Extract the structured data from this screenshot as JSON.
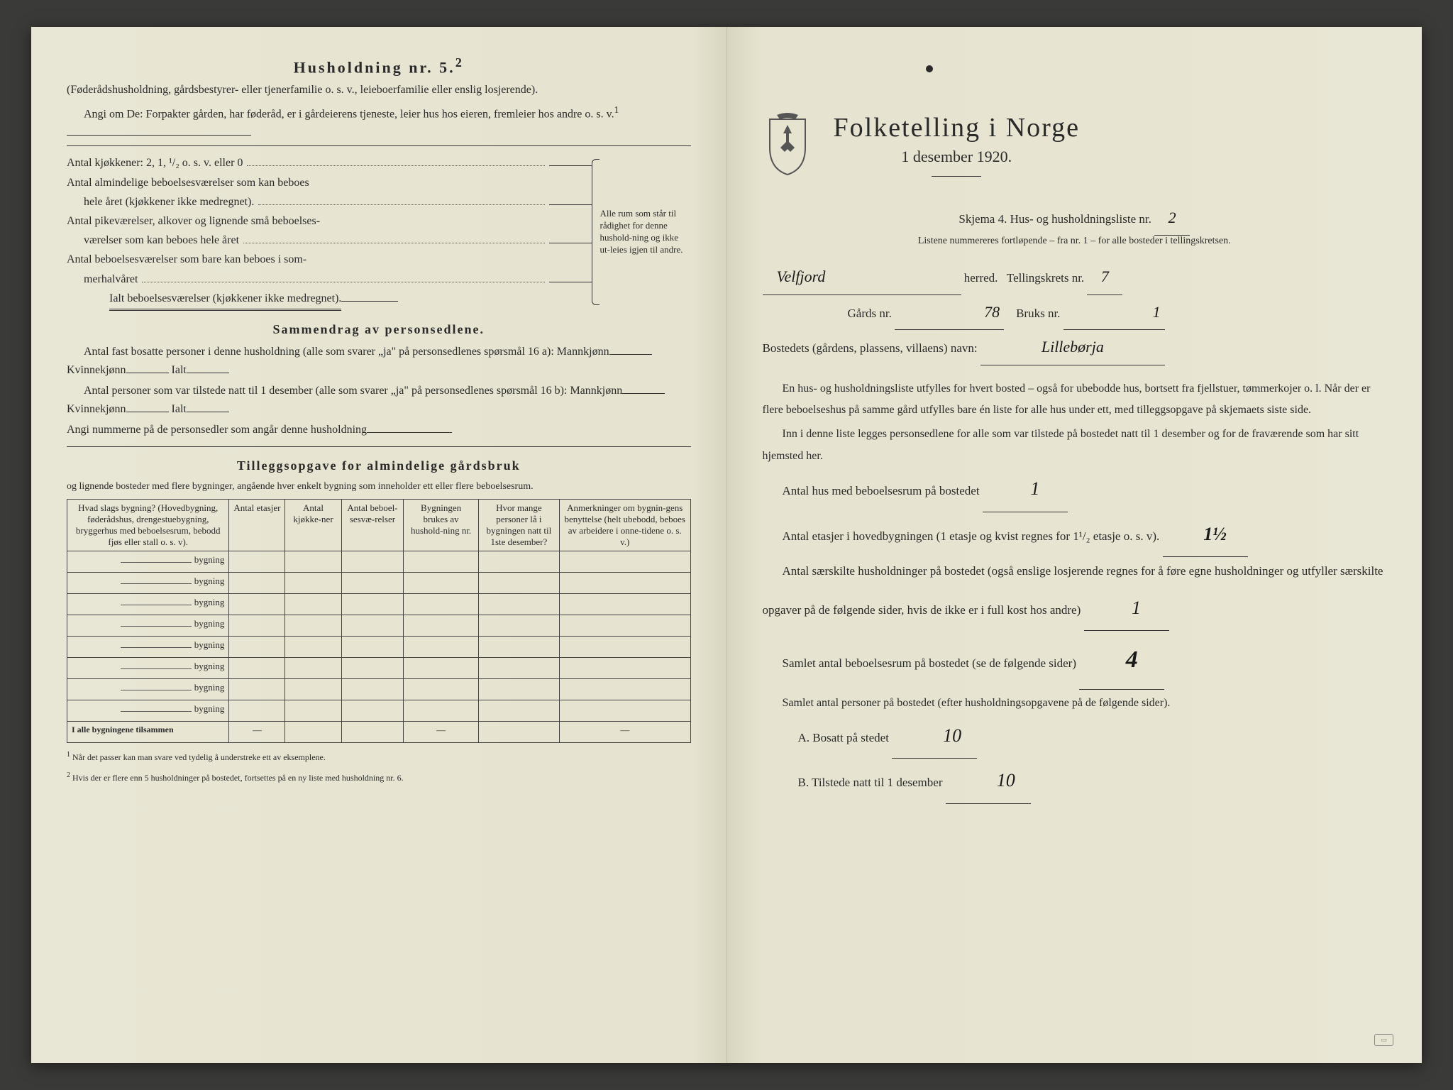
{
  "colors": {
    "paper": "#e8e6d4",
    "ink": "#2a2a2a",
    "background": "#3a3a38",
    "handwriting": "#1a1a1a"
  },
  "left": {
    "household_title": "Husholdning nr. 5.",
    "household_sup": "2",
    "household_intro": "(Føderådshusholdning, gårdsbestyrer- eller tjenerfamilie o. s. v., leieboerfamilie eller enslig losjerende).",
    "household_prompt": "Angi om De: Forpakter gården, har føderåd, er i gårdeierens tjeneste, leier hus hos eieren, fremleier hos andre o. s. v.",
    "household_sup2": "1",
    "kitchen_line": "Antal kjøkkener: 2, 1, ¹/₂ o. s. v. eller 0",
    "rooms_line1a": "Antal almindelige beboelsesværelser som kan beboes",
    "rooms_line1b": "hele året (kjøkkener ikke medregnet).",
    "rooms_line2a": "Antal pikeværelser, alkover og lignende små beboelses-",
    "rooms_line2b": "værelser som kan beboes hele året",
    "rooms_line3a": "Antal beboelsesværelser som bare kan beboes i som-",
    "rooms_line3b": "merhalvåret",
    "rooms_total": "Ialt beboelsesværelser  (kjøkkener ikke medregnet).",
    "brace_text": "Alle rum som står til rådighet for denne hushold-ning og ikke ut-leies igjen til andre.",
    "summary_title": "Sammendrag av personsedlene.",
    "summary_l1": "Antal fast bosatte personer i denne husholdning (alle som svarer „ja\" på personsedlenes spørsmål 16 a): Mannkjønn",
    "kvinnekjonn": "Kvinnekjønn",
    "ialt": "Ialt",
    "summary_l2": "Antal personer som var tilstede natt til 1 desember (alle som svarer „ja\" på personsedlenes spørsmål 16 b): Mannkjønn",
    "summary_l3": "Angi nummerne på de personsedler som angår denne husholdning",
    "tillegg_title": "Tilleggsopgave for almindelige gårdsbruk",
    "tillegg_sub": "og lignende bosteder med flere bygninger, angående hver enkelt bygning som inneholder ett eller flere beboelsesrum.",
    "table": {
      "headers": [
        "Hvad slags bygning?\n(Hovedbygning, føderådshus, drengestuebygning, bryggerhus med beboelsesrum, bebodd fjøs eller stall o. s. v).",
        "Antal etasjer",
        "Antal kjøkke-ner",
        "Antal beboel-sesvæ-relser",
        "Bygningen brukes av hushold-ning nr.",
        "Hvor mange personer lå i bygningen natt til 1ste desember?",
        "Anmerkninger om bygnin-gens benyttelse (helt ubebodd, beboes av arbeidere i onne-tidene o. s. v.)"
      ],
      "row_suffix": "bygning",
      "row_count": 8,
      "total_row": "I alle bygningene tilsammen"
    },
    "footnote1": "Når det passer kan man svare ved tydelig å understreke ett av eksemplene.",
    "footnote2": "Hvis der er flere enn 5 husholdninger på bostedet, fortsettes på en ny liste med husholdning nr. 6.",
    "footnote1_num": "1",
    "footnote2_num": "2"
  },
  "right": {
    "main_title": "Folketelling i Norge",
    "date": "1 desember 1920.",
    "skjema_line": "Skjema 4.  Hus- og husholdningsliste nr.",
    "skjema_value": "2",
    "listene": "Listene nummereres fortløpende – fra nr. 1 – for alle bosteder i tellingskretsen.",
    "herred_value": "Velfjord",
    "herred_label": "herred.",
    "tellingskrets_label": "Tellingskrets nr.",
    "tellingskrets_value": "7",
    "gards_label": "Gårds nr.",
    "gards_value": "78",
    "bruks_label": "Bruks nr.",
    "bruks_value": "1",
    "bosted_label": "Bostedets (gårdens, plassens, villaens) navn:",
    "bosted_value": "Lillebørja",
    "para1": "En hus- og husholdningsliste utfylles for hvert bosted – også for ubebodde hus, bortsett fra fjellstuer, tømmerkojer o. l.  Når der er flere beboelseshus på samme gård utfylles bare én liste for alle hus under ett, med tilleggsopgave på skjemaets siste side.",
    "para2": "Inn i denne liste legges personsedlene for alle som var tilstede på bostedet natt til 1 desember og for de fraværende som har sitt hjemsted her.",
    "antal_hus_label": "Antal hus med beboelsesrum på bostedet",
    "antal_hus_value": "1",
    "antal_etasjer_label": "Antal etasjer i hovedbygningen (1 etasje og kvist regnes for 1¹/₂ etasje o. s. v).",
    "antal_etasjer_value": "1½",
    "antal_husholdninger": "Antal særskilte husholdninger på bostedet (også enslige losjerende regnes for å føre egne husholdninger og utfyller særskilte opgaver på de følgende sider, hvis de ikke er i full kost hos andre)",
    "antal_husholdninger_value": "1",
    "samlet_rum": "Samlet antal beboelsesrum på bostedet (se de følgende sider)",
    "samlet_rum_value": "4",
    "samlet_personer": "Samlet antal personer på bostedet (efter husholdningsopgavene på de følgende sider).",
    "bosatt_label": "A.  Bosatt på stedet",
    "bosatt_value": "10",
    "tilstede_label": "B.  Tilstede natt til 1 desember",
    "tilstede_value": "10"
  }
}
